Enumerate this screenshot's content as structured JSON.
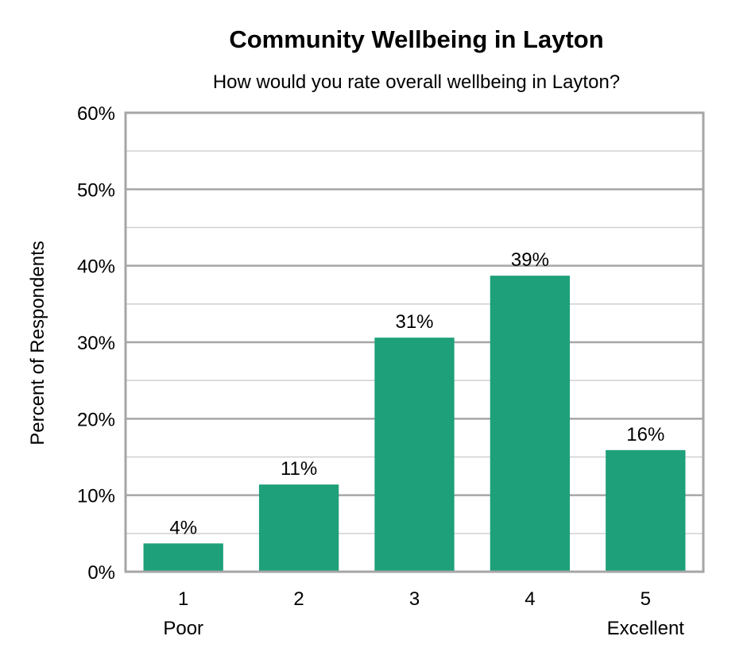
{
  "chart_data": {
    "type": "bar",
    "title": "Community Wellbeing in Layton",
    "subtitle": "How would you rate overall wellbeing in Layton?",
    "xlabel": "",
    "ylabel": "Percent of Respondents",
    "categories": [
      "1",
      "2",
      "3",
      "4",
      "5"
    ],
    "category_sublabels": [
      "Poor",
      "",
      "",
      "",
      "Excellent"
    ],
    "values": [
      3.7,
      11.4,
      30.6,
      38.7,
      15.9
    ],
    "data_labels": [
      "4%",
      "11%",
      "31%",
      "39%",
      "16%"
    ],
    "ylim": [
      0,
      60
    ],
    "ytick_values": [
      0,
      10,
      20,
      30,
      40,
      50,
      60
    ],
    "ytick_labels": [
      "0%",
      "10%",
      "20%",
      "30%",
      "40%",
      "50%",
      "60%"
    ],
    "grid": true,
    "legend": "none",
    "bar_color": "#1ea07a",
    "grid_color": "#b3b3b3",
    "axis_color": "#a6a6a6"
  }
}
